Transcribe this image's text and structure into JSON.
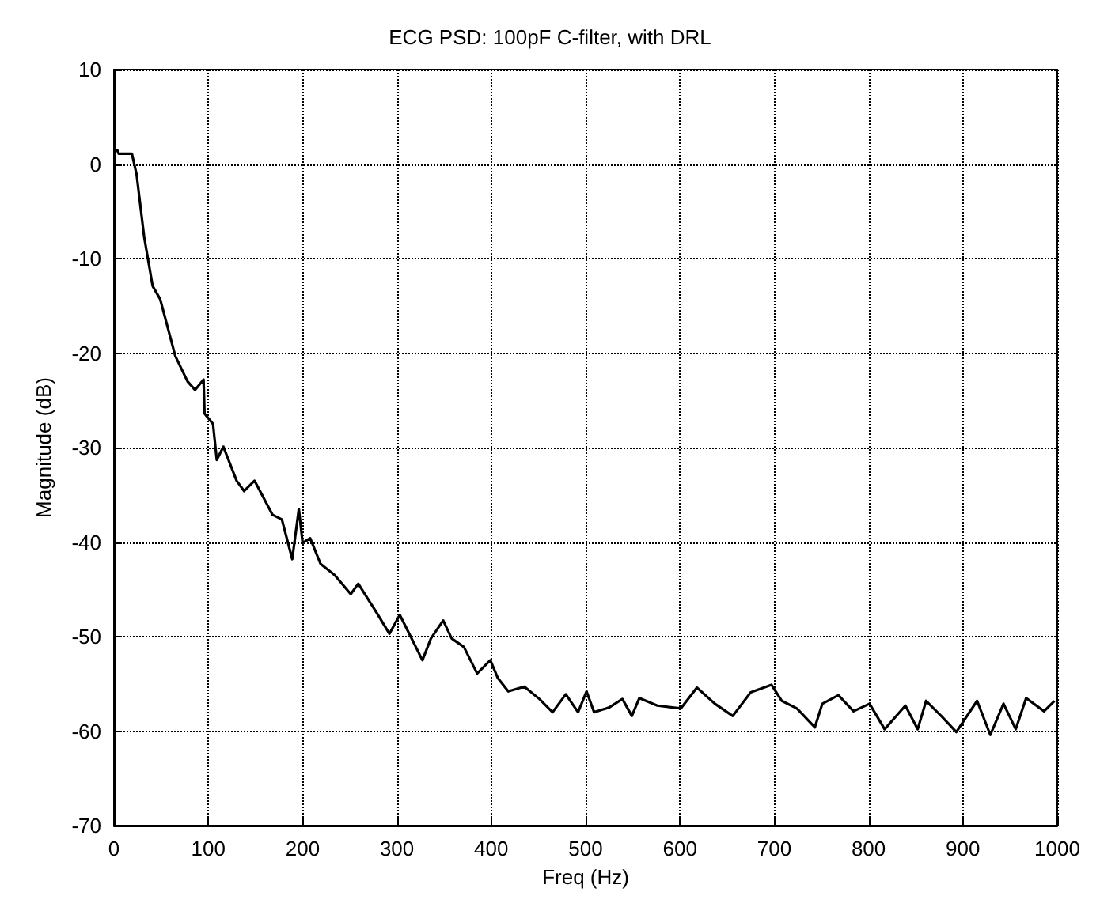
{
  "chart_data": {
    "type": "line",
    "title": "ECG PSD: 100pF C-filter, with DRL",
    "xlabel": "Freq (Hz)",
    "ylabel": "Magnitude (dB)",
    "xlim": [
      0,
      1000
    ],
    "xticks": [
      0,
      100,
      200,
      300,
      400,
      500,
      600,
      700,
      800,
      900,
      1000
    ],
    "ylim": [
      -70,
      10
    ],
    "yticks": [
      -70,
      -60,
      -50,
      -40,
      -30,
      -20,
      -10,
      0,
      10
    ],
    "grid": true,
    "marker": "none",
    "line_style": "solid",
    "series": [
      {
        "color": "#000000",
        "x": [
          3,
          5,
          19,
          24,
          32,
          41,
          49,
          65,
          78,
          86,
          95,
          96,
          105,
          109,
          116,
          130,
          138,
          149,
          168,
          178,
          189,
          196,
          200,
          208,
          219,
          234,
          251,
          259,
          278,
          292,
          303,
          314,
          327,
          336,
          349,
          358,
          371,
          385,
          399,
          407,
          418,
          435,
          451,
          465,
          479,
          492,
          501,
          509,
          525,
          539,
          549,
          557,
          576,
          601,
          618,
          637,
          656,
          675,
          697,
          708,
          724,
          743,
          751,
          768,
          784,
          801,
          817,
          839,
          852,
          861,
          877,
          893,
          915,
          929,
          943,
          956,
          967,
          986,
          997
        ],
        "values": [
          1.6,
          1.1,
          1.1,
          -1.1,
          -7.7,
          -12.9,
          -14.3,
          -20.3,
          -23,
          -23.9,
          -22.8,
          -26.4,
          -27.5,
          -31.3,
          -29.9,
          -33.5,
          -34.6,
          -33.5,
          -37.1,
          -37.6,
          -41.8,
          -36.5,
          -40.1,
          -39.6,
          -42.3,
          -43.5,
          -45.5,
          -44.4,
          -47.4,
          -49.7,
          -47.7,
          -49.9,
          -52.5,
          -50.2,
          -48.3,
          -50.2,
          -51.1,
          -53.9,
          -52.5,
          -54.4,
          -55.8,
          -55.3,
          -56.6,
          -58,
          -56.1,
          -58,
          -55.8,
          -58,
          -57.5,
          -56.6,
          -58.4,
          -56.5,
          -57.3,
          -57.6,
          -55.4,
          -57.1,
          -58.4,
          -55.9,
          -55.1,
          -56.8,
          -57.6,
          -59.6,
          -57.1,
          -56.2,
          -57.9,
          -57.1,
          -59.8,
          -57.3,
          -59.8,
          -56.8,
          -58.4,
          -60.1,
          -56.8,
          -60.4,
          -57.1,
          -59.8,
          -56.5,
          -57.9,
          -56.8
        ]
      }
    ]
  }
}
